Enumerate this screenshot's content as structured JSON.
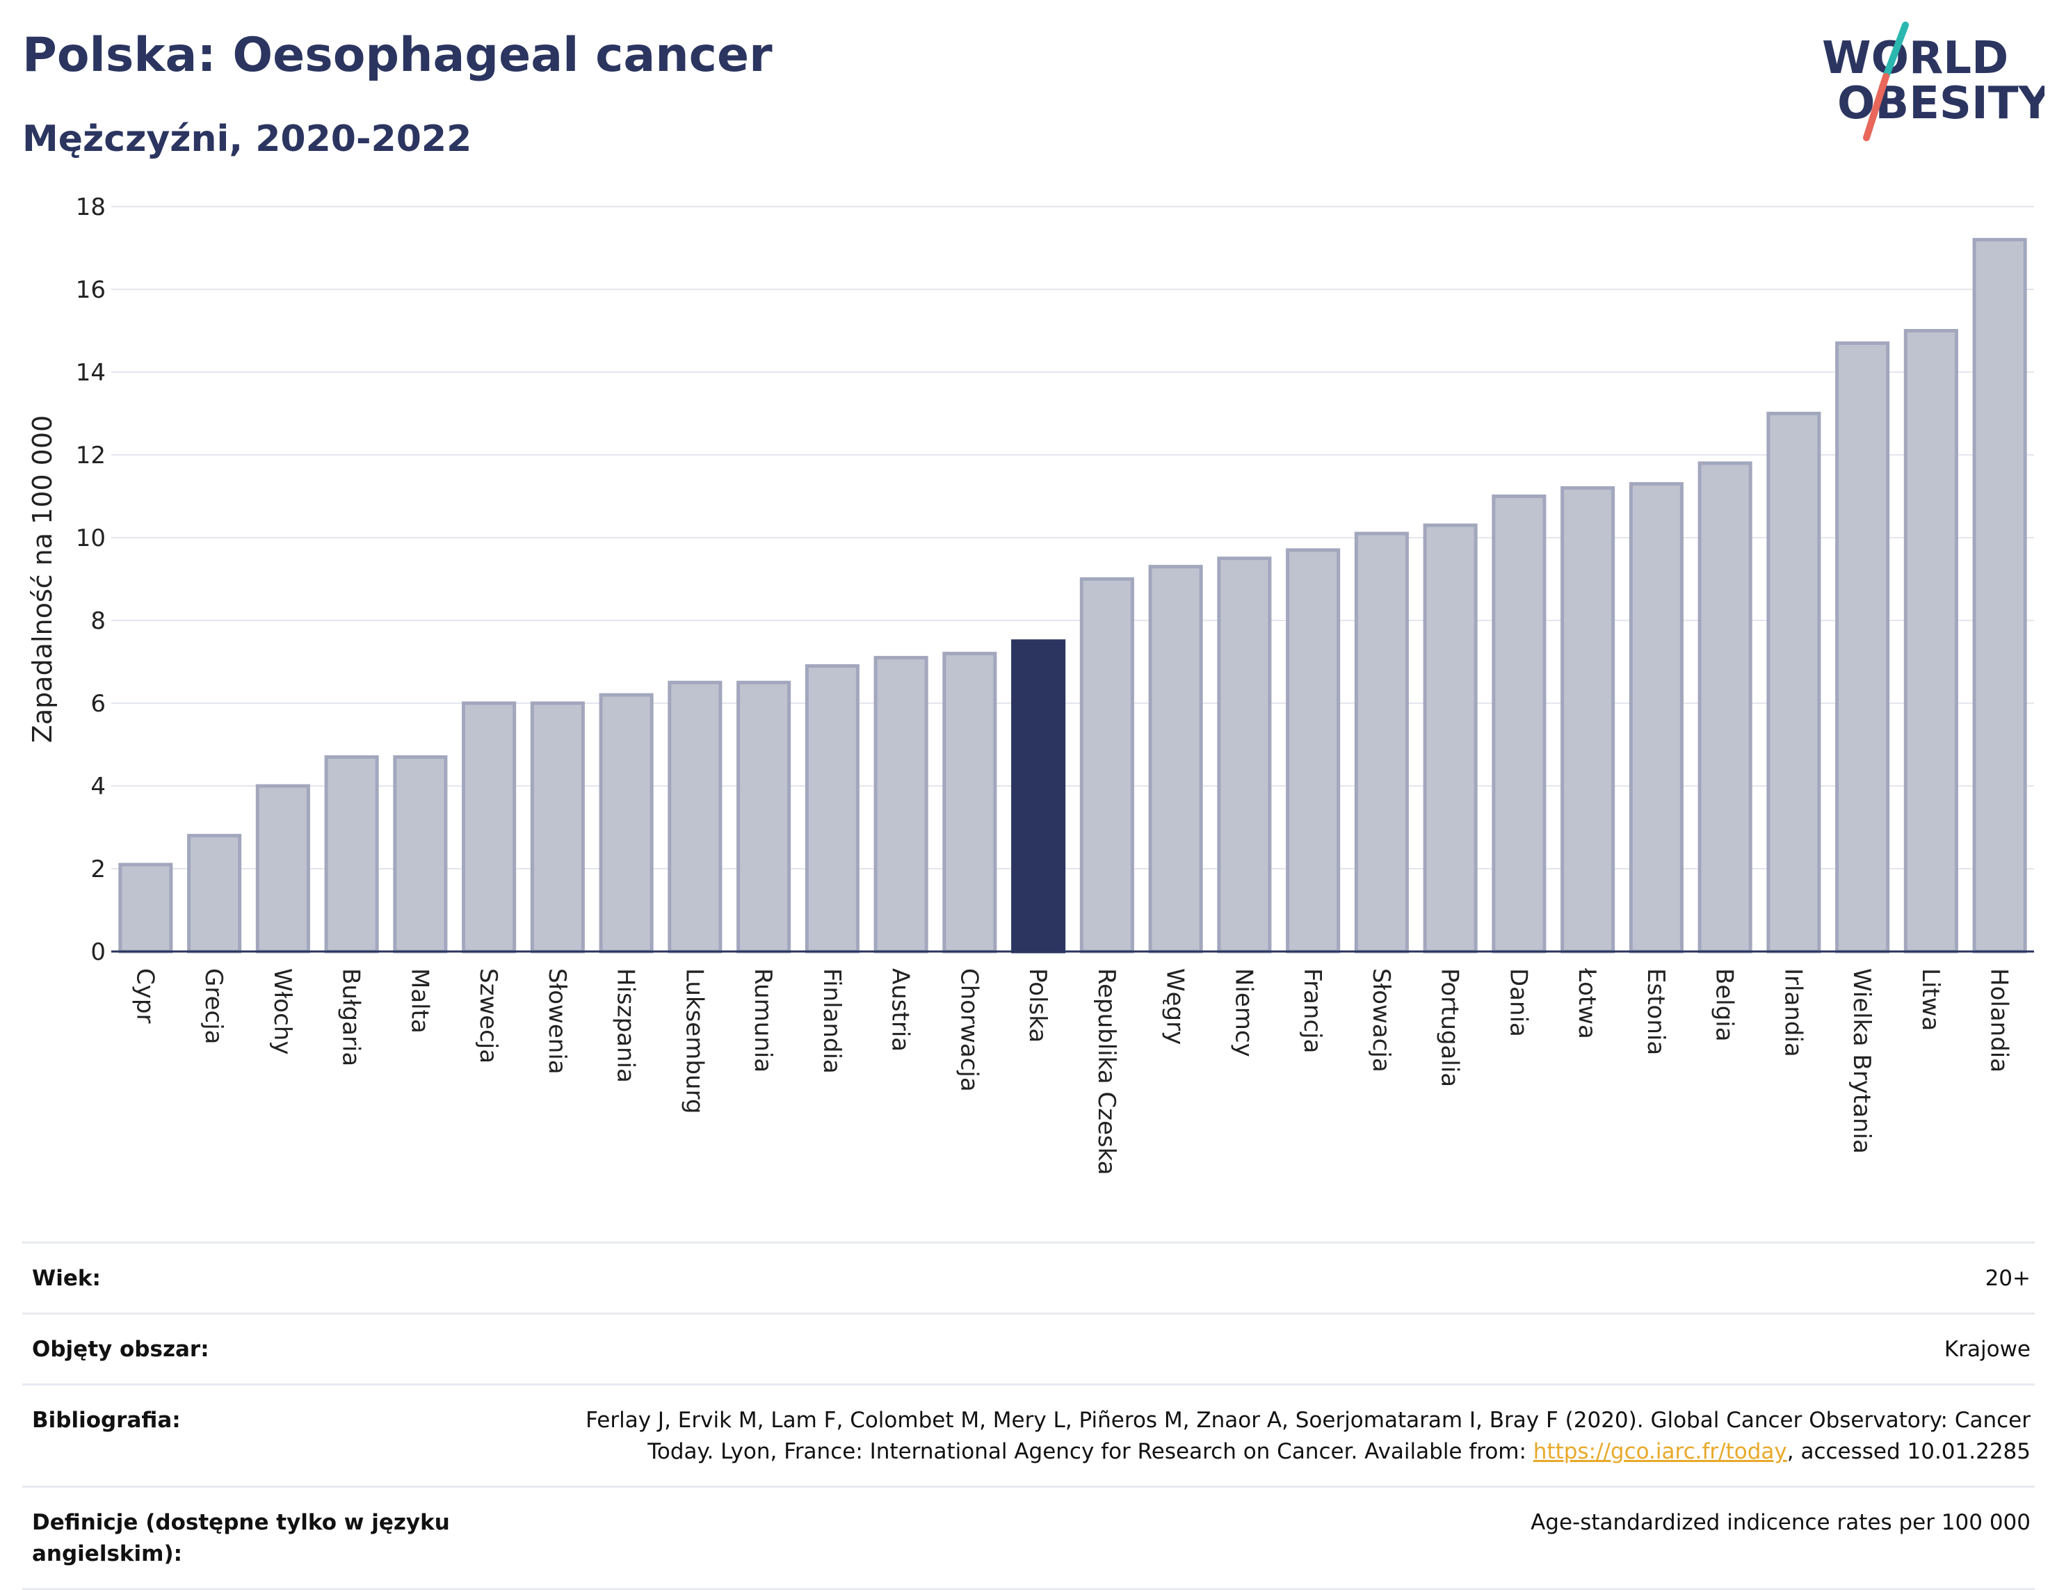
{
  "header": {
    "title": "Polska: Oesophageal cancer",
    "subtitle": "Mężczyźni, 2020-2022"
  },
  "logo": {
    "line1": "WORLD",
    "line2": "OBESITY"
  },
  "colors": {
    "bar": "#bfc3d0",
    "bar_border": "#a2a7bd",
    "highlight": "#2b3560",
    "grid": "#e4e6ee",
    "axis": "#2b3560",
    "logo_slash_top": "#2bb7b0",
    "logo_slash_bottom": "#e8675a"
  },
  "chart_data": {
    "type": "bar",
    "ylabel": "Zapadalność na 100 000",
    "ylim": [
      0,
      18
    ],
    "yticks": [
      0,
      2,
      4,
      6,
      8,
      10,
      12,
      14,
      16,
      18
    ],
    "grid": true,
    "highlight": "Polska",
    "categories": [
      "Cypr",
      "Grecja",
      "Włochy",
      "Bułgaria",
      "Malta",
      "Szwecja",
      "Słowenia",
      "Hiszpania",
      "Luksemburg",
      "Rumunia",
      "Finlandia",
      "Austria",
      "Chorwacja",
      "Polska",
      "Republika Czeska",
      "Węgry",
      "Niemcy",
      "Francja",
      "Słowacja",
      "Portugalia",
      "Dania",
      "Łotwa",
      "Estonia",
      "Belgia",
      "Irlandia",
      "Wielka Brytania",
      "Litwa",
      "Holandia"
    ],
    "values": [
      2.1,
      2.8,
      4.0,
      4.7,
      4.7,
      6.0,
      6.0,
      6.2,
      6.5,
      6.5,
      6.9,
      7.1,
      7.2,
      7.5,
      9.0,
      9.3,
      9.5,
      9.7,
      10.1,
      10.3,
      11.0,
      11.2,
      11.3,
      11.8,
      13.0,
      14.7,
      15.0,
      17.2
    ]
  },
  "meta": [
    {
      "key": "Wiek:",
      "value": "20+"
    },
    {
      "key": "Objęty obszar:",
      "value": "Krajowe"
    },
    {
      "key": "Bibliografia:",
      "value_line1": "Ferlay J, Ervik M, Lam F, Colombet M, Mery L, Piñeros M, Znaor A, Soerjomataram I, Bray F (2020). Global Cancer Observatory: Cancer",
      "value_pre": "Today. Lyon, France: International Agency for Research on Cancer. Available from: ",
      "link": "https://gco.iarc.fr/today",
      "value_post": ", accessed 10.01.2285"
    },
    {
      "key": "Definicje (dostępne tylko w języku angielskim):",
      "value": "Age-standardized indicence rates per 100 000"
    }
  ]
}
